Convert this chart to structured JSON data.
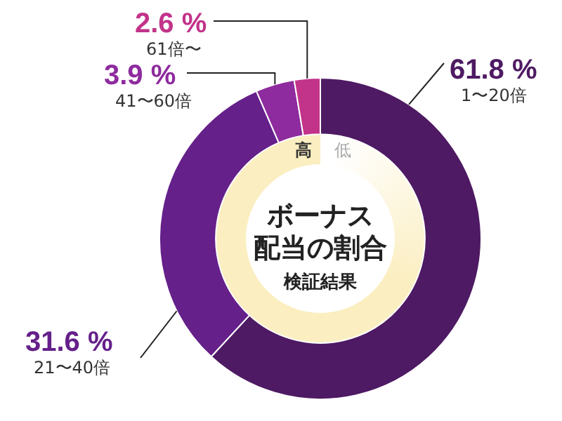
{
  "chart_data": {
    "type": "donut",
    "title": "ボーナス",
    "subtitle": "配当の割合",
    "categories": [
      "1〜20倍",
      "21〜40倍",
      "41〜60倍",
      "61倍〜"
    ],
    "values": [
      61.8,
      31.6,
      3.9,
      2.6
    ],
    "value_labels": [
      "61.8 %",
      "31.6 %",
      "3.9 %",
      "2.6 %"
    ],
    "colors": [
      "#4e1a63",
      "#65208a",
      "#8e2b9e",
      "#c2338a"
    ],
    "annotations": [
      "高",
      "低",
      "検証結果"
    ],
    "legend": false
  }
}
